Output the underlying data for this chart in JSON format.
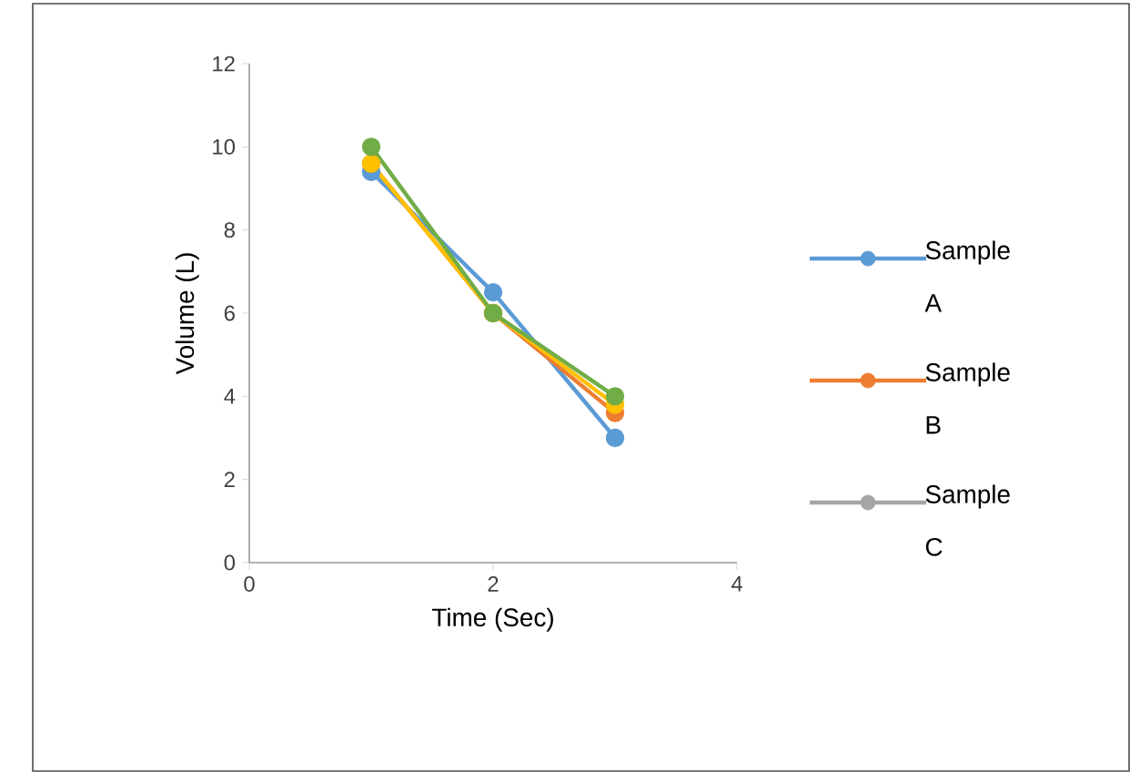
{
  "chart_data": {
    "type": "line",
    "xlabel": "Time (Sec)",
    "ylabel": "Volume (L)",
    "x": [
      1,
      2,
      3
    ],
    "xlim": [
      0,
      4
    ],
    "xticks": [
      0,
      2,
      4
    ],
    "ylim": [
      0,
      12
    ],
    "yticks": [
      0,
      2,
      4,
      6,
      8,
      10,
      12
    ],
    "grid": false,
    "legend": "right",
    "marker": "circle",
    "line_style": "solid",
    "series": [
      {
        "name": "Sample A",
        "color": "#5b9bd5",
        "values": [
          9.4,
          6.5,
          3
        ]
      },
      {
        "name": "Sample B",
        "color": "#ed7d31",
        "values": [
          9.6,
          6,
          3.6
        ]
      },
      {
        "name": "Sample C",
        "color": "#a5a5a5",
        "values": [
          null,
          null,
          null
        ]
      },
      {
        "color": "#ffc000",
        "values": [
          9.6,
          6,
          3.8
        ]
      },
      {
        "color": "#70ad47",
        "values": [
          10,
          6,
          4
        ]
      }
    ]
  }
}
